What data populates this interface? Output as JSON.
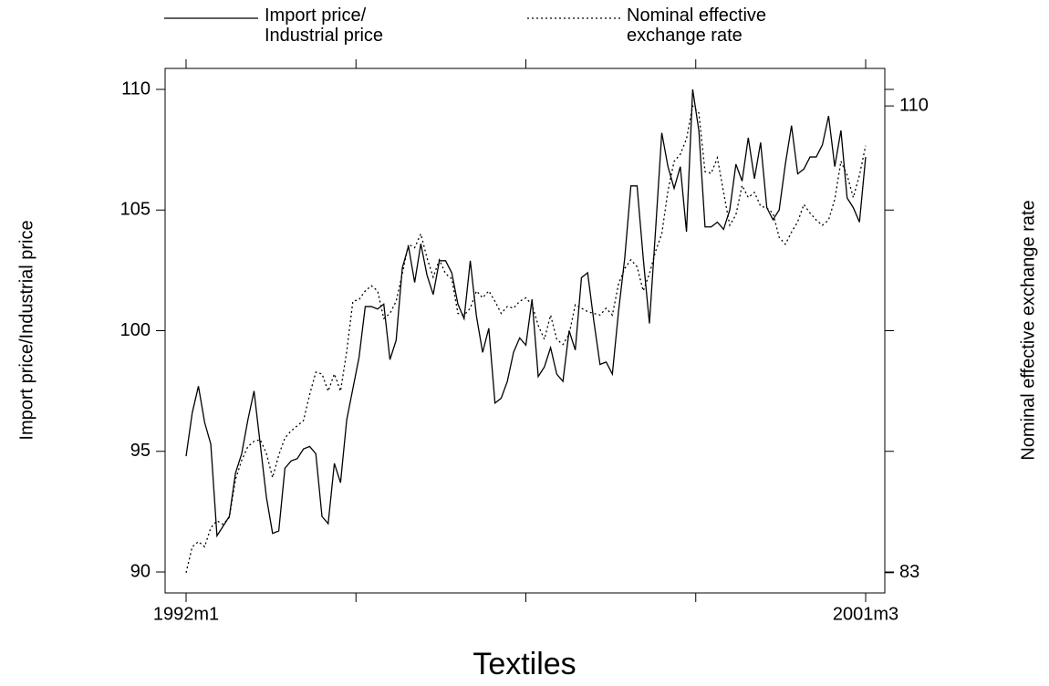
{
  "chart_data": {
    "type": "line",
    "title": "Textiles",
    "y_label": "Import price/Industrial price",
    "y2_label": "Nominal effective exchange rate",
    "categories": [
      "1992m1",
      null,
      null,
      null,
      null,
      null,
      null,
      null,
      null,
      null,
      null,
      null,
      null,
      null,
      null,
      null,
      null,
      null,
      null,
      null,
      null,
      null,
      null,
      null,
      null,
      null,
      null,
      null,
      null,
      null,
      null,
      null,
      null,
      null,
      null,
      null,
      null,
      null,
      null,
      null,
      null,
      null,
      null,
      null,
      null,
      null,
      null,
      null,
      null,
      null,
      null,
      null,
      null,
      null,
      null,
      null,
      null,
      null,
      null,
      null,
      null,
      null,
      null,
      null,
      null,
      null,
      null,
      null,
      null,
      null,
      null,
      null,
      null,
      null,
      null,
      null,
      null,
      null,
      null,
      null,
      null,
      null,
      null,
      null,
      null,
      null,
      null,
      null,
      null,
      null,
      null,
      null,
      null,
      null,
      null,
      null,
      null,
      null,
      null,
      null,
      null,
      null,
      null,
      null,
      null,
      null,
      null,
      null,
      null,
      null,
      "2001m3"
    ],
    "ylim": [
      89.13,
      110.87
    ],
    "yticks": [
      90,
      95,
      100,
      105,
      110
    ],
    "y2lim": [
      81.83,
      112.17
    ],
    "y2ticks": [
      83,
      110
    ],
    "legend": "top",
    "series": [
      {
        "name": "Import price/\nIndustrial price",
        "color": "#000000",
        "dash": "solid",
        "values": [
          94.8,
          96.6,
          97.7,
          96.2,
          95.3,
          91.5,
          91.9,
          92.3,
          94.1,
          94.9,
          96.3,
          97.5,
          95.3,
          93.1,
          91.6,
          91.7,
          94.3,
          94.6,
          94.7,
          95.1,
          95.2,
          94.9,
          92.3,
          92.0,
          94.5,
          93.7,
          96.3,
          97.6,
          98.9,
          101.0,
          101.0,
          100.9,
          101.1,
          98.8,
          99.6,
          102.6,
          103.5,
          102.0,
          103.6,
          102.3,
          101.5,
          102.9,
          102.9,
          102.4,
          101.1,
          100.5,
          102.9,
          100.6,
          99.1,
          100.1,
          97.0,
          97.2,
          97.9,
          99.1,
          99.7,
          99.4,
          101.3,
          98.1,
          98.5,
          99.3,
          98.2,
          97.9,
          100.0,
          99.2,
          102.2,
          102.4,
          100.4,
          98.6,
          98.7,
          98.2,
          100.8,
          103.0,
          106.0,
          106.0,
          103.0,
          100.3,
          104.2,
          108.2,
          106.8,
          105.9,
          106.8,
          104.1,
          110.0,
          108.3,
          104.3,
          104.3,
          104.5,
          104.2,
          105.0,
          106.9,
          106.2,
          108.0,
          106.3,
          107.8,
          105.1,
          104.6,
          105.0,
          106.9,
          108.5,
          106.5,
          106.7,
          107.2,
          107.2,
          107.7,
          108.9,
          106.8,
          108.3,
          105.5,
          105.1,
          104.5,
          107.2
        ]
      },
      {
        "name": "Nominal effective\nexchange rate",
        "color": "#000000",
        "dash": "dotted",
        "axis": "y2",
        "values": [
          83.0,
          84.5,
          84.8,
          84.5,
          85.6,
          86.0,
          85.8,
          86.2,
          88.4,
          89.5,
          90.3,
          90.6,
          90.7,
          89.9,
          88.5,
          89.8,
          90.8,
          91.2,
          91.5,
          91.8,
          93.3,
          94.6,
          94.5,
          93.5,
          94.5,
          93.5,
          95.8,
          98.7,
          98.8,
          99.3,
          99.6,
          99.3,
          97.7,
          98.0,
          98.7,
          100.3,
          102.0,
          101.8,
          102.6,
          101.2,
          100.1,
          101.1,
          100.3,
          100.0,
          98.0,
          97.9,
          98.3,
          99.3,
          98.9,
          99.3,
          98.7,
          98.0,
          98.4,
          98.3,
          98.7,
          98.9,
          98.5,
          97.3,
          96.5,
          97.9,
          96.5,
          96.2,
          96.8,
          98.5,
          98.3,
          98.1,
          98.0,
          97.9,
          98.3,
          97.9,
          99.7,
          100.6,
          101.1,
          100.7,
          99.3,
          100.3,
          101.6,
          102.6,
          105.1,
          106.8,
          107.2,
          108.1,
          110.0,
          109.6,
          106.2,
          106.1,
          107.0,
          105.0,
          103.1,
          103.7,
          105.4,
          104.7,
          105.0,
          104.2,
          104.1,
          103.8,
          102.4,
          102.0,
          102.7,
          103.3,
          104.3,
          103.8,
          103.4,
          103.1,
          103.4,
          104.6,
          106.8,
          106.0,
          104.7,
          106.0,
          107.7
        ]
      }
    ]
  }
}
